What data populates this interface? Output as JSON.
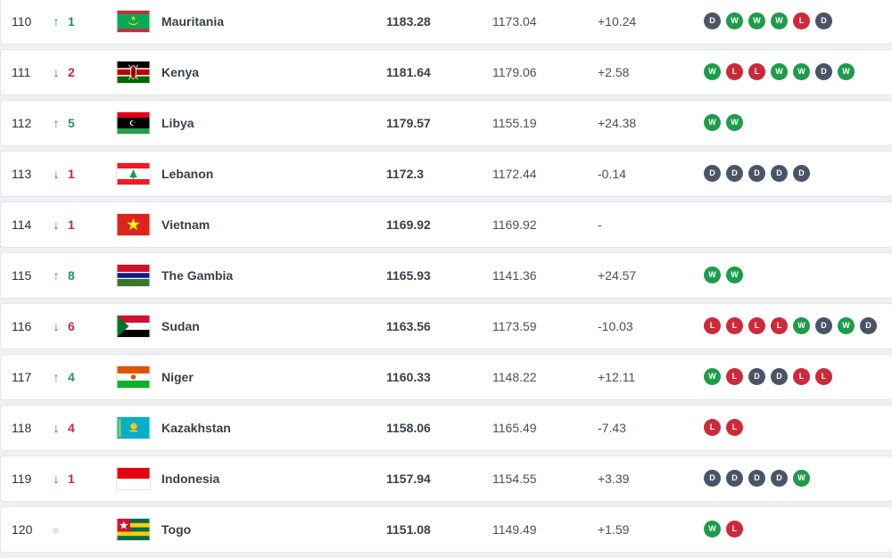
{
  "rows": [
    {
      "rank": "110",
      "dir": "up",
      "move": "1",
      "flag": "mauritania-flag",
      "name": "Mauritania",
      "points": "1183.28",
      "prev": "1173.04",
      "diff": "+10.24",
      "form": [
        "D",
        "W",
        "W",
        "W",
        "L",
        "D"
      ]
    },
    {
      "rank": "111",
      "dir": "down",
      "move": "2",
      "flag": "kenya-flag",
      "name": "Kenya",
      "points": "1181.64",
      "prev": "1179.06",
      "diff": "+2.58",
      "form": [
        "W",
        "L",
        "L",
        "W",
        "W",
        "D",
        "W"
      ]
    },
    {
      "rank": "112",
      "dir": "up",
      "move": "5",
      "flag": "libya-flag",
      "name": "Libya",
      "points": "1179.57",
      "prev": "1155.19",
      "diff": "+24.38",
      "form": [
        "W",
        "W"
      ]
    },
    {
      "rank": "113",
      "dir": "down",
      "move": "1",
      "flag": "lebanon-flag",
      "name": "Lebanon",
      "points": "1172.3",
      "prev": "1172.44",
      "diff": "-0.14",
      "form": [
        "D",
        "D",
        "D",
        "D",
        "D"
      ]
    },
    {
      "rank": "114",
      "dir": "down",
      "move": "1",
      "flag": "vietnam-flag",
      "name": "Vietnam",
      "points": "1169.92",
      "prev": "1169.92",
      "diff": "-",
      "form": []
    },
    {
      "rank": "115",
      "dir": "up",
      "move": "8",
      "flag": "gambia-flag",
      "name": "The Gambia",
      "points": "1165.93",
      "prev": "1141.36",
      "diff": "+24.57",
      "form": [
        "W",
        "W"
      ]
    },
    {
      "rank": "116",
      "dir": "down",
      "move": "6",
      "flag": "sudan-flag",
      "name": "Sudan",
      "points": "1163.56",
      "prev": "1173.59",
      "diff": "-10.03",
      "form": [
        "L",
        "L",
        "L",
        "L",
        "W",
        "D",
        "W",
        "D"
      ]
    },
    {
      "rank": "117",
      "dir": "up",
      "move": "4",
      "flag": "niger-flag",
      "name": "Niger",
      "points": "1160.33",
      "prev": "1148.22",
      "diff": "+12.11",
      "form": [
        "W",
        "L",
        "D",
        "D",
        "L",
        "L"
      ]
    },
    {
      "rank": "118",
      "dir": "down",
      "move": "4",
      "flag": "kazakhstan-flag",
      "name": "Kazakhstan",
      "points": "1158.06",
      "prev": "1165.49",
      "diff": "-7.43",
      "form": [
        "L",
        "L"
      ]
    },
    {
      "rank": "119",
      "dir": "down",
      "move": "1",
      "flag": "indonesia-flag",
      "name": "Indonesia",
      "points": "1157.94",
      "prev": "1154.55",
      "diff": "+3.39",
      "form": [
        "D",
        "D",
        "D",
        "D",
        "W"
      ]
    },
    {
      "rank": "120",
      "dir": "neutral",
      "move": "",
      "flag": "togo-flag",
      "name": "Togo",
      "points": "1151.08",
      "prev": "1149.49",
      "diff": "+1.59",
      "form": [
        "W",
        "L"
      ]
    }
  ],
  "colors": {
    "win": "#1e9b4b",
    "loss": "#cc2a3b",
    "draw": "#4b5467",
    "up": "#1e9b4b",
    "down": "#cc2a3b"
  },
  "icons": {
    "up": "arrow-up-icon",
    "down": "arrow-down-icon",
    "neutral": "no-change-dot-icon"
  }
}
